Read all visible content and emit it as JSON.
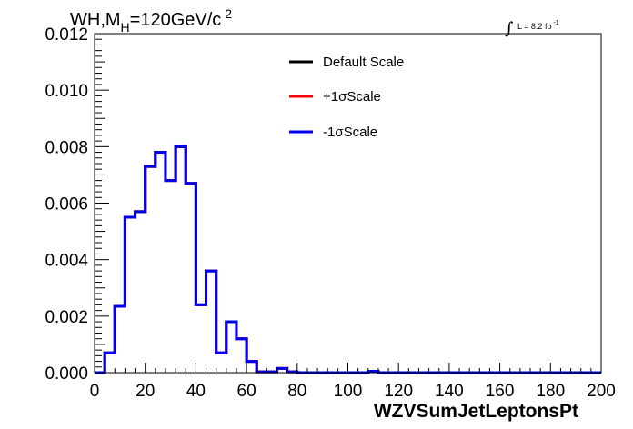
{
  "chart_data": {
    "type": "line",
    "subtype": "step-histogram",
    "title": {
      "prefix": "WH,M",
      "subscript": "H",
      "main": "=120GeV/c",
      "superscript": "2"
    },
    "lumi": {
      "integral_symbol": "∫",
      "text": "L = 8.2 fb",
      "superscript": "-1"
    },
    "xlabel": "WZVSumJetLeptonsPt",
    "ylabel": "",
    "xlim": [
      0,
      200
    ],
    "ylim": [
      0,
      0.012
    ],
    "xticks": [
      {
        "value": 0,
        "label": "0"
      },
      {
        "value": 20,
        "label": "20"
      },
      {
        "value": 40,
        "label": "40"
      },
      {
        "value": 60,
        "label": "60"
      },
      {
        "value": 80,
        "label": "80"
      },
      {
        "value": 100,
        "label": "100"
      },
      {
        "value": 120,
        "label": "120"
      },
      {
        "value": 140,
        "label": "140"
      },
      {
        "value": 160,
        "label": "160"
      },
      {
        "value": 180,
        "label": "180"
      },
      {
        "value": 200,
        "label": "200"
      }
    ],
    "yticks": [
      {
        "value": 0,
        "label": "0.000"
      },
      {
        "value": 0.002,
        "label": "0.002"
      },
      {
        "value": 0.004,
        "label": "0.004"
      },
      {
        "value": 0.006,
        "label": "0.006"
      },
      {
        "value": 0.008,
        "label": "0.008"
      },
      {
        "value": 0.01,
        "label": "0.010"
      },
      {
        "value": 0.012,
        "label": "0.012"
      }
    ],
    "bin_edges": [
      0,
      4,
      8,
      12,
      16,
      20,
      24,
      28,
      32,
      36,
      40,
      44,
      48,
      52,
      56,
      60,
      64,
      68,
      72,
      76,
      80,
      84,
      88,
      92,
      96,
      100,
      104,
      108,
      112,
      116,
      120,
      124,
      128,
      132,
      136,
      140,
      144,
      148,
      152,
      156,
      160,
      164,
      168,
      172,
      176,
      180,
      184,
      188,
      192,
      196,
      200
    ],
    "series": [
      {
        "name": "Default Scale",
        "color": "#000000",
        "values": [
          0,
          0.0007,
          0.00235,
          0.0055,
          0.0057,
          0.0073,
          0.0078,
          0.0068,
          0.008,
          0.0067,
          0.0024,
          0.0036,
          0.0007,
          0.0018,
          0.0012,
          0.0004,
          3e-05,
          3e-05,
          0.00015,
          3e-05,
          0,
          0,
          0,
          0,
          0,
          0,
          0,
          5e-05,
          0,
          0,
          0,
          0,
          0,
          0,
          0,
          0,
          0,
          0,
          0,
          0,
          0,
          0,
          0,
          0,
          0,
          0,
          0,
          0,
          0,
          0
        ]
      },
      {
        "name": "+1σScale",
        "color": "#ff0000",
        "values": [
          0,
          0.0007,
          0.00235,
          0.0055,
          0.0057,
          0.0073,
          0.0078,
          0.0068,
          0.008,
          0.0067,
          0.0024,
          0.0036,
          0.0007,
          0.0018,
          0.0012,
          0.0004,
          3e-05,
          3e-05,
          0.00015,
          3e-05,
          0,
          0,
          0,
          0,
          0,
          0,
          0,
          5e-05,
          0,
          0,
          0,
          0,
          0,
          0,
          0,
          0,
          0,
          0,
          0,
          0,
          0,
          0,
          0,
          0,
          0,
          0,
          0,
          0,
          0,
          0
        ]
      },
      {
        "name": "-1σScale",
        "color": "#0000ee",
        "values": [
          0,
          0.0007,
          0.00235,
          0.0055,
          0.0057,
          0.0073,
          0.0078,
          0.0068,
          0.008,
          0.0067,
          0.0024,
          0.0036,
          0.0007,
          0.0018,
          0.0012,
          0.0004,
          3e-05,
          3e-05,
          0.00015,
          3e-05,
          0,
          0,
          0,
          0,
          0,
          0,
          0,
          5e-05,
          0,
          0,
          0,
          0,
          0,
          0,
          0,
          0,
          0,
          0,
          0,
          0,
          0,
          0,
          0,
          0,
          0,
          0,
          0,
          0,
          0,
          0
        ]
      }
    ],
    "legend_position": "top-right",
    "grid": false
  }
}
